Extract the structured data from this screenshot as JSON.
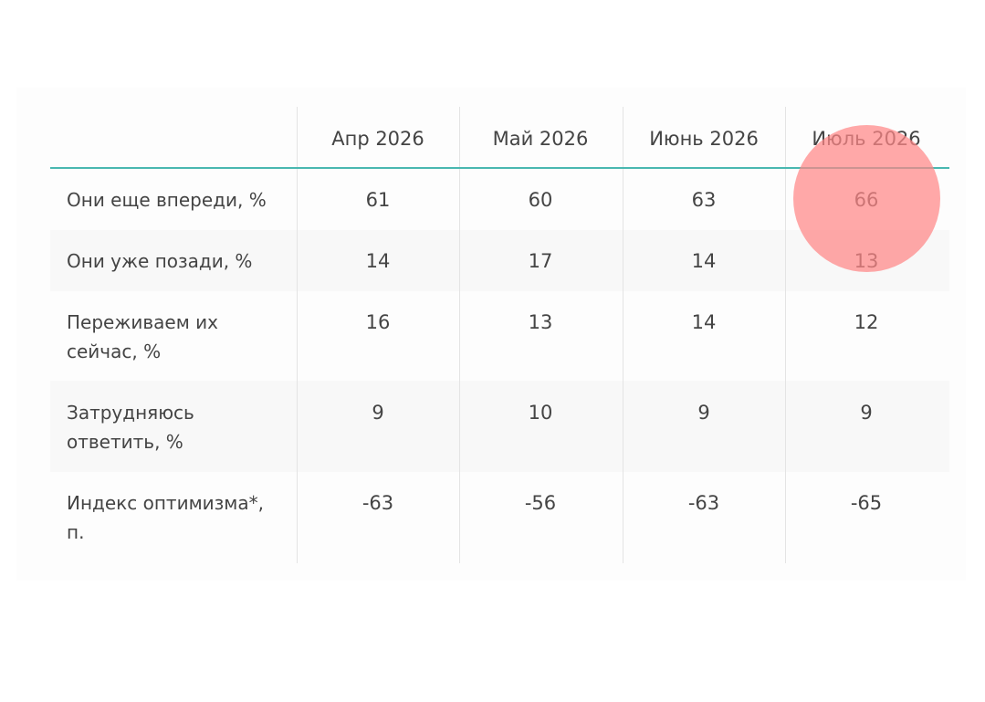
{
  "chart_data": {
    "type": "table",
    "columns": [
      "Апр 2026",
      "Май 2026",
      "Июнь 2026",
      "Июль 2026"
    ],
    "rows": [
      {
        "label": "Они еще впереди, %",
        "values": [
          "61",
          "60",
          "63",
          "66"
        ]
      },
      {
        "label": "Они уже позади, %",
        "values": [
          "14",
          "17",
          "14",
          "13"
        ]
      },
      {
        "label": "Переживаем их сейчас, %",
        "values": [
          "16",
          "13",
          "14",
          "12"
        ]
      },
      {
        "label": "Затрудняюсь ответить, %",
        "values": [
          "9",
          "10",
          "9",
          "9"
        ]
      },
      {
        "label": "Индекс оптимизма*, п.",
        "values": [
          "-63",
          "-56",
          "-63",
          "-65"
        ]
      }
    ],
    "highlight": {
      "row": 0,
      "column": 3,
      "color": "#ff8787"
    }
  }
}
